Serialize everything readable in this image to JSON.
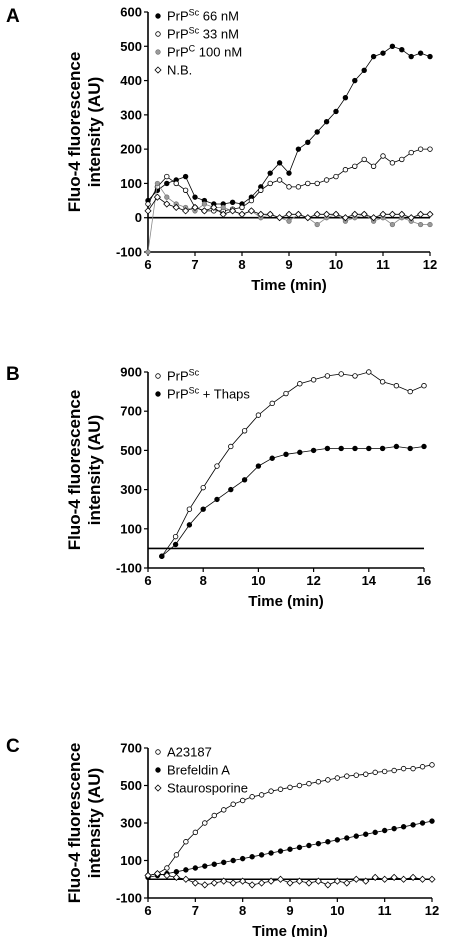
{
  "chart_data": [
    {
      "panel": "A",
      "type": "scatter",
      "xlabel": "Time (min)",
      "ylabel_lines": [
        "Fluo-4 fluorescence",
        "intensity (AU)"
      ],
      "xlim": [
        6,
        12
      ],
      "ylim": [
        -100,
        600
      ],
      "xticks": [
        6,
        7,
        8,
        9,
        10,
        11,
        12
      ],
      "yticks": [
        -100,
        0,
        100,
        200,
        300,
        400,
        500,
        600
      ],
      "legend_position": "top-left",
      "series": [
        {
          "name": "PrPSc 66 nM",
          "label_parts": [
            "PrP",
            "Sc",
            " 66 nM"
          ],
          "marker": "filled-circle",
          "color": "#000000",
          "x": [
            6.0,
            6.2,
            6.4,
            6.6,
            6.8,
            7.0,
            7.2,
            7.4,
            7.6,
            7.8,
            8.0,
            8.2,
            8.4,
            8.6,
            8.8,
            9.0,
            9.2,
            9.4,
            9.6,
            9.8,
            10.0,
            10.2,
            10.4,
            10.6,
            10.8,
            11.0,
            11.2,
            11.4,
            11.6,
            11.8,
            12.0
          ],
          "y": [
            50,
            80,
            100,
            110,
            120,
            60,
            50,
            40,
            40,
            45,
            40,
            60,
            90,
            130,
            160,
            130,
            200,
            220,
            250,
            280,
            310,
            350,
            400,
            430,
            470,
            480,
            500,
            490,
            470,
            480,
            470
          ]
        },
        {
          "name": "PrPSc 33 nM",
          "label_parts": [
            "PrP",
            "Sc",
            " 33 nM"
          ],
          "marker": "open-circle",
          "color": "#000000",
          "x": [
            6.0,
            6.2,
            6.4,
            6.6,
            6.8,
            7.0,
            7.2,
            7.4,
            7.6,
            7.8,
            8.0,
            8.2,
            8.4,
            8.6,
            8.8,
            9.0,
            9.2,
            9.4,
            9.6,
            9.8,
            10.0,
            10.2,
            10.4,
            10.6,
            10.8,
            11.0,
            11.2,
            11.4,
            11.6,
            11.8,
            12.0
          ],
          "y": [
            40,
            90,
            120,
            100,
            80,
            30,
            20,
            20,
            20,
            25,
            30,
            50,
            80,
            100,
            110,
            90,
            90,
            100,
            100,
            110,
            120,
            140,
            150,
            170,
            150,
            180,
            160,
            170,
            190,
            200,
            200
          ]
        },
        {
          "name": "PrPC 100 nM",
          "label_parts": [
            "PrP",
            "C",
            " 100 nM"
          ],
          "marker": "grey-circle",
          "color": "#888888",
          "x": [
            6.0,
            6.2,
            6.4,
            6.6,
            6.8,
            7.0,
            7.2,
            7.4,
            7.6,
            7.8,
            8.0,
            8.2,
            8.4,
            8.6,
            8.8,
            9.0,
            9.2,
            9.4,
            9.6,
            9.8,
            10.0,
            10.2,
            10.4,
            10.6,
            10.8,
            11.0,
            11.2,
            11.4,
            11.6,
            11.8,
            12.0
          ],
          "y": [
            -100,
            100,
            60,
            40,
            30,
            20,
            40,
            30,
            30,
            20,
            10,
            20,
            0,
            10,
            0,
            -10,
            10,
            0,
            -20,
            0,
            10,
            -10,
            0,
            10,
            -10,
            0,
            -20,
            0,
            -10,
            -20,
            -20
          ]
        },
        {
          "name": "N.B.",
          "label_parts": [
            "N.B.",
            "",
            ""
          ],
          "marker": "open-diamond",
          "color": "#000000",
          "x": [
            6.0,
            6.2,
            6.4,
            6.6,
            6.8,
            7.0,
            7.2,
            7.4,
            7.6,
            7.8,
            8.0,
            8.2,
            8.4,
            8.6,
            8.8,
            9.0,
            9.2,
            9.4,
            9.6,
            9.8,
            10.0,
            10.2,
            10.4,
            10.6,
            10.8,
            11.0,
            11.2,
            11.4,
            11.6,
            11.8,
            12.0
          ],
          "y": [
            20,
            60,
            40,
            30,
            20,
            30,
            20,
            30,
            10,
            20,
            10,
            20,
            10,
            10,
            0,
            10,
            10,
            0,
            10,
            10,
            10,
            0,
            10,
            10,
            0,
            10,
            10,
            10,
            0,
            10,
            10
          ]
        }
      ]
    },
    {
      "panel": "B",
      "type": "line",
      "xlabel": "Time (min)",
      "ylabel_lines": [
        "Fluo-4 fluorescence",
        "intensity (AU)"
      ],
      "xlim": [
        6,
        16
      ],
      "ylim": [
        -100,
        900
      ],
      "xticks": [
        6,
        8,
        10,
        12,
        14,
        16
      ],
      "yticks": [
        -100,
        100,
        300,
        500,
        700,
        900
      ],
      "legend_position": "top-left",
      "series": [
        {
          "name": "PrPSc",
          "label_parts": [
            "PrP",
            "Sc",
            ""
          ],
          "marker": "open-circle",
          "color": "#000000",
          "x": [
            6.5,
            7.0,
            7.5,
            8.0,
            8.5,
            9.0,
            9.5,
            10.0,
            10.5,
            11.0,
            11.5,
            12.0,
            12.5,
            13.0,
            13.5,
            14.0,
            14.5,
            15.0,
            15.5,
            16.0
          ],
          "y": [
            -40,
            60,
            200,
            310,
            420,
            520,
            600,
            680,
            740,
            790,
            840,
            860,
            880,
            890,
            880,
            900,
            850,
            830,
            800,
            830
          ]
        },
        {
          "name": "PrPSc + Thaps",
          "label_parts": [
            "PrP",
            "Sc",
            " + Thaps"
          ],
          "marker": "filled-circle",
          "color": "#000000",
          "x": [
            6.5,
            7.0,
            7.5,
            8.0,
            8.5,
            9.0,
            9.5,
            10.0,
            10.5,
            11.0,
            11.5,
            12.0,
            12.5,
            13.0,
            13.5,
            14.0,
            14.5,
            15.0,
            15.5,
            16.0
          ],
          "y": [
            -40,
            20,
            120,
            200,
            250,
            300,
            350,
            420,
            460,
            480,
            490,
            500,
            510,
            510,
            510,
            510,
            510,
            520,
            510,
            520
          ]
        }
      ]
    },
    {
      "panel": "C",
      "type": "scatter",
      "xlabel": "Time (min)",
      "ylabel_lines": [
        "Fluo-4 fluorescence",
        "intensity (AU)"
      ],
      "xlim": [
        6,
        12
      ],
      "ylim": [
        -100,
        700
      ],
      "xticks": [
        6,
        7,
        8,
        9,
        10,
        11,
        12
      ],
      "yticks": [
        -100,
        100,
        300,
        500,
        700
      ],
      "legend_position": "top-left",
      "series": [
        {
          "name": "A23187",
          "label_parts": [
            "A23187",
            "",
            ""
          ],
          "marker": "open-circle",
          "color": "#000000",
          "x": [
            6.0,
            6.2,
            6.4,
            6.6,
            6.8,
            7.0,
            7.2,
            7.4,
            7.6,
            7.8,
            8.0,
            8.2,
            8.4,
            8.6,
            8.8,
            9.0,
            9.2,
            9.4,
            9.6,
            9.8,
            10.0,
            10.2,
            10.4,
            10.6,
            10.8,
            11.0,
            11.2,
            11.4,
            11.6,
            11.8,
            12.0
          ],
          "y": [
            20,
            30,
            60,
            130,
            200,
            250,
            300,
            340,
            370,
            400,
            420,
            440,
            450,
            470,
            480,
            490,
            500,
            510,
            520,
            530,
            540,
            550,
            555,
            560,
            570,
            575,
            580,
            590,
            590,
            600,
            610
          ]
        },
        {
          "name": "Brefeldin A",
          "label_parts": [
            "Brefeldin A",
            "",
            ""
          ],
          "marker": "filled-circle",
          "color": "#000000",
          "x": [
            6.0,
            6.2,
            6.4,
            6.6,
            6.8,
            7.0,
            7.2,
            7.4,
            7.6,
            7.8,
            8.0,
            8.2,
            8.4,
            8.6,
            8.8,
            9.0,
            9.2,
            9.4,
            9.6,
            9.8,
            10.0,
            10.2,
            10.4,
            10.6,
            10.8,
            11.0,
            11.2,
            11.4,
            11.6,
            11.8,
            12.0
          ],
          "y": [
            10,
            20,
            30,
            40,
            50,
            60,
            70,
            80,
            90,
            100,
            110,
            120,
            130,
            140,
            150,
            160,
            170,
            180,
            190,
            200,
            210,
            220,
            230,
            240,
            250,
            260,
            270,
            280,
            290,
            300,
            310
          ]
        },
        {
          "name": "Staurosporine",
          "label_parts": [
            "Staurosporine",
            "",
            ""
          ],
          "marker": "open-diamond",
          "color": "#000000",
          "x": [
            6.0,
            6.2,
            6.4,
            6.6,
            6.8,
            7.0,
            7.2,
            7.4,
            7.6,
            7.8,
            8.0,
            8.2,
            8.4,
            8.6,
            8.8,
            9.0,
            9.2,
            9.4,
            9.6,
            9.8,
            10.0,
            10.2,
            10.4,
            10.6,
            10.8,
            11.0,
            11.2,
            11.4,
            11.6,
            11.8,
            12.0
          ],
          "y": [
            20,
            30,
            20,
            10,
            0,
            -20,
            -30,
            -20,
            -10,
            -20,
            -10,
            -30,
            -20,
            -10,
            0,
            -20,
            -10,
            -20,
            -10,
            -30,
            -10,
            -20,
            0,
            -10,
            10,
            0,
            10,
            0,
            10,
            0,
            0
          ]
        }
      ]
    }
  ]
}
